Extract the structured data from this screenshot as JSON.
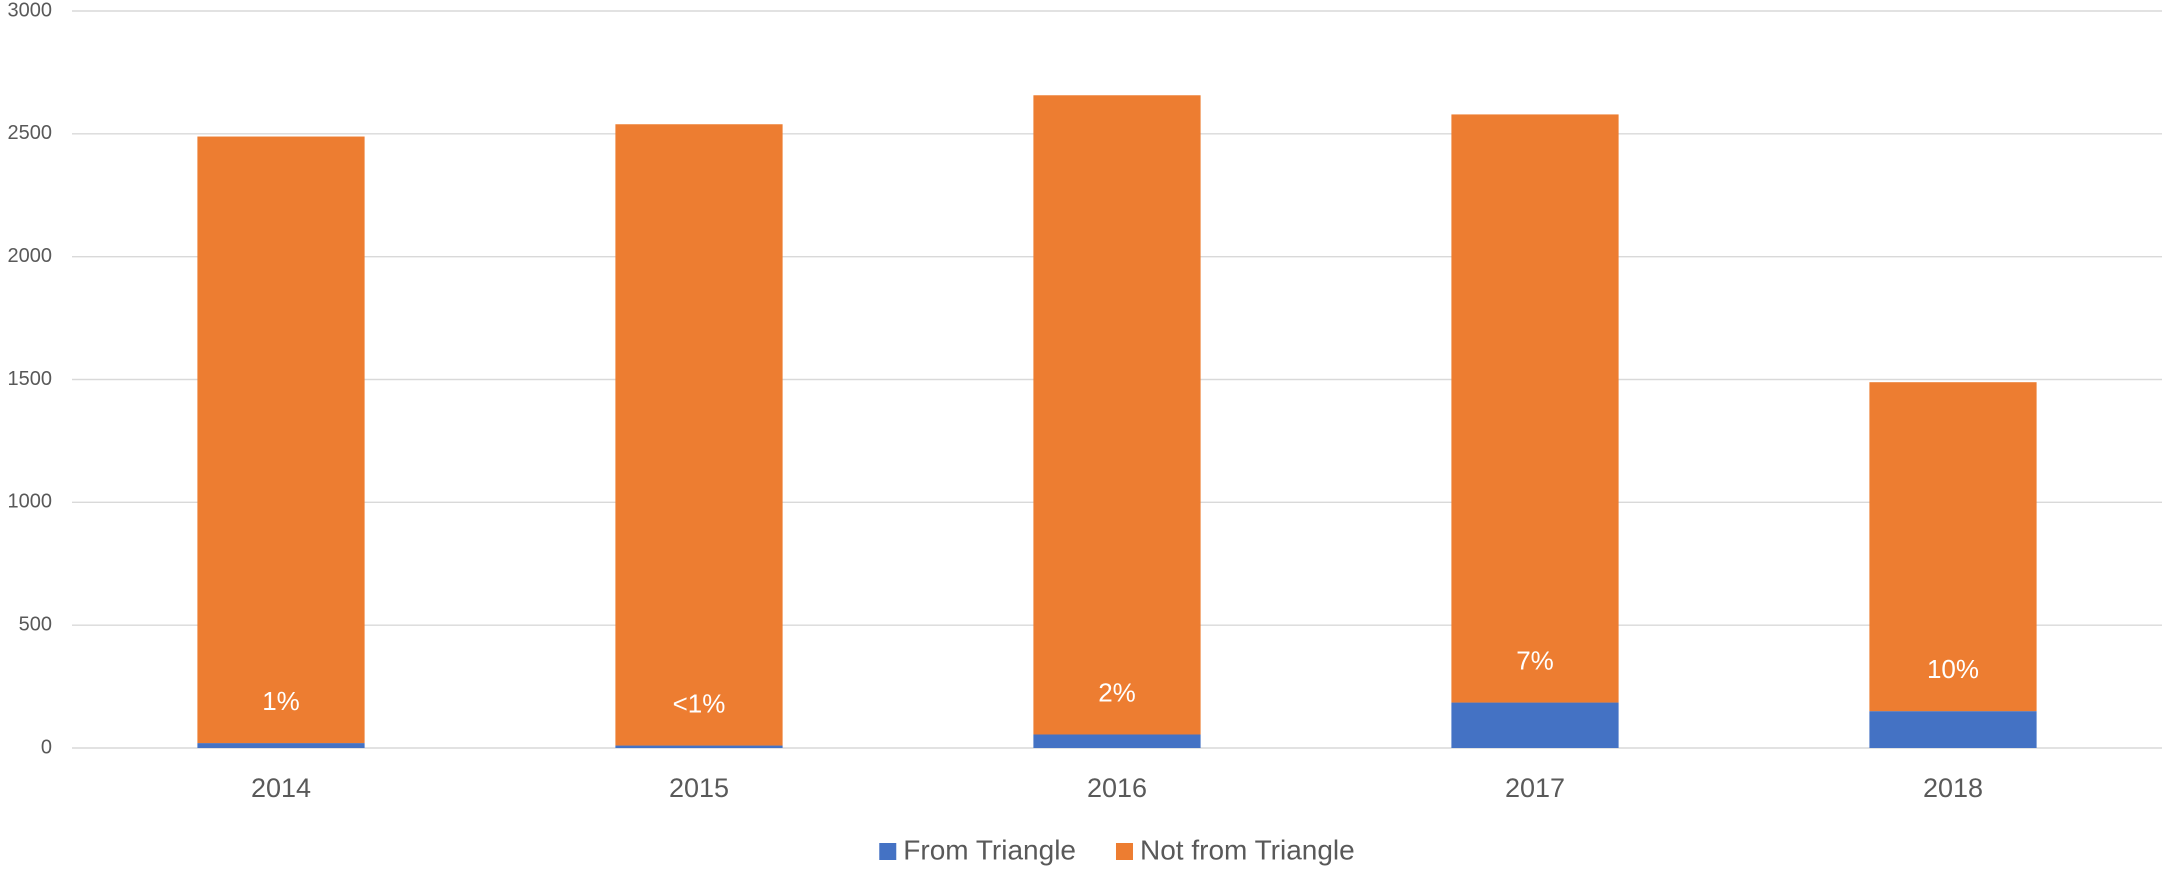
{
  "chart_data": {
    "type": "stacked_bar",
    "categories": [
      "2014",
      "2015",
      "2016",
      "2017",
      "2018"
    ],
    "series": [
      {
        "name": "From Triangle",
        "color": "#4472c4",
        "values": [
          20,
          10,
          55,
          185,
          150
        ]
      },
      {
        "name": "Not from Triangle",
        "color": "#ed7d31",
        "values": [
          2469,
          2529,
          2602,
          2394,
          1339
        ]
      }
    ],
    "annotations": [
      "1%",
      "<1%",
      "2%",
      "7%",
      "10%"
    ],
    "ylim": [
      0,
      3000
    ],
    "yticks": [
      0,
      500,
      1000,
      1500,
      2000,
      2500,
      3000
    ],
    "grid": true,
    "legend": "bottom"
  }
}
